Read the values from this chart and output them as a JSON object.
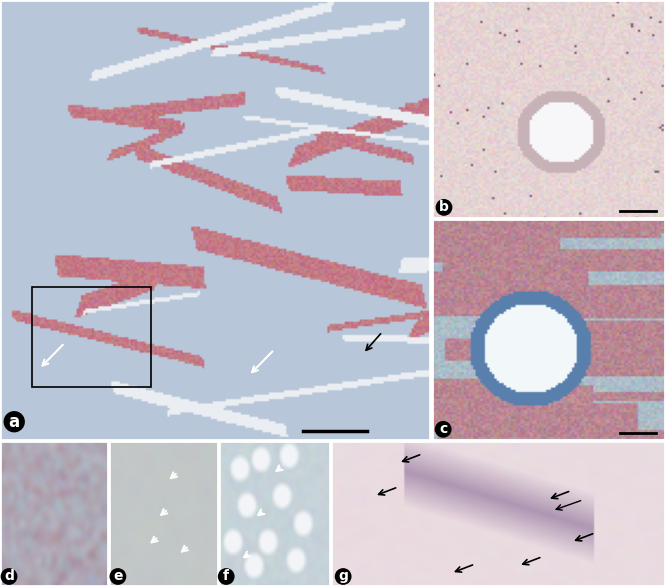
{
  "figure_width": 6.65,
  "figure_height": 5.86,
  "dpi": 100,
  "panels": {
    "a": {
      "label": "a",
      "color_main": "#b8c8d8",
      "color_secondary": "#c87878"
    },
    "b": {
      "label": "b",
      "color_main": "#e8d8c8",
      "color_secondary": "#d4b8a8"
    },
    "c": {
      "label": "c",
      "color_main": "#b8ccd8",
      "color_secondary": "#c890a0"
    },
    "d": {
      "label": "d",
      "color_main": "#a8b8c8",
      "color_secondary": "#c87070"
    },
    "e": {
      "label": "e",
      "color_main": "#c0c8c0",
      "color_secondary": "#b0b8b0"
    },
    "f": {
      "label": "f",
      "color_main": "#b8c4cc",
      "color_secondary": "#d0d8e0"
    },
    "g": {
      "label": "g",
      "color_main": "#ddd0c8",
      "color_secondary": "#c0a890"
    }
  },
  "label_fontsize": 12,
  "label_color": "white",
  "label_bg": "black",
  "border_color": "black",
  "border_width": 1.5,
  "scale_bar_color": "black"
}
